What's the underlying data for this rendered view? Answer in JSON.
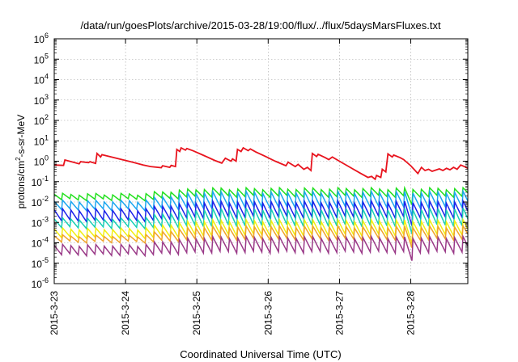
{
  "chart_data": {
    "type": "line",
    "title": "/data/run/goesPlots/archive/2015-03-28/19:00/flux/../flux/5daysMarsFluxes.txt",
    "xlabel": "Coordinated Universal Time (UTC)",
    "ylabel_parts": {
      "prefix": "protons/cm",
      "superscript": "2",
      "suffix": "-s-sr-MeV"
    },
    "y_scale": "log",
    "ylim": [
      1e-06,
      1000000.0
    ],
    "xlim": [
      0,
      5.8
    ],
    "grid": true,
    "x_ticks": [
      {
        "x": 0,
        "label": "2015-3-23"
      },
      {
        "x": 1,
        "label": "2015-3-24"
      },
      {
        "x": 2,
        "label": "2015-3-25"
      },
      {
        "x": 3,
        "label": "2015-3-26"
      },
      {
        "x": 4,
        "label": "2015-3-27"
      },
      {
        "x": 5,
        "label": "2015-3-28"
      }
    ],
    "y_ticks": [
      {
        "exp": -6,
        "base": "10",
        "sup": "-6"
      },
      {
        "exp": -5,
        "base": "10",
        "sup": "-5"
      },
      {
        "exp": -4,
        "base": "10",
        "sup": "-4"
      },
      {
        "exp": -3,
        "base": "10",
        "sup": "-3"
      },
      {
        "exp": -2,
        "base": "10",
        "sup": "-2"
      },
      {
        "exp": -1,
        "base": "10",
        "sup": "-1"
      },
      {
        "exp": 0,
        "base": "10",
        "sup": "0"
      },
      {
        "exp": 1,
        "base": "10",
        "sup": "1"
      },
      {
        "exp": 2,
        "base": "10",
        "sup": "2"
      },
      {
        "exp": 3,
        "base": "10",
        "sup": "3"
      },
      {
        "exp": 4,
        "base": "10",
        "sup": "4"
      },
      {
        "exp": 5,
        "base": "10",
        "sup": "5"
      },
      {
        "exp": 6,
        "base": "10",
        "sup": "6"
      }
    ],
    "series": [
      {
        "color": "#e8141e",
        "points": [
          [
            0.0,
            0.65
          ],
          [
            0.13,
            0.62
          ],
          [
            0.15,
            1.15
          ],
          [
            0.35,
            0.75
          ],
          [
            0.37,
            0.95
          ],
          [
            0.48,
            0.85
          ],
          [
            0.5,
            0.95
          ],
          [
            0.58,
            0.78
          ],
          [
            0.6,
            2.4
          ],
          [
            0.65,
            1.6
          ],
          [
            0.67,
            2.1
          ],
          [
            0.8,
            1.6
          ],
          [
            0.95,
            1.2
          ],
          [
            1.1,
            0.9
          ],
          [
            1.25,
            0.65
          ],
          [
            1.35,
            0.55
          ],
          [
            1.5,
            0.48
          ],
          [
            1.52,
            0.6
          ],
          [
            1.62,
            0.5
          ],
          [
            1.64,
            0.62
          ],
          [
            1.7,
            0.55
          ],
          [
            1.72,
            3.8
          ],
          [
            1.76,
            3.0
          ],
          [
            1.78,
            4.5
          ],
          [
            1.84,
            3.5
          ],
          [
            1.86,
            4.2
          ],
          [
            1.95,
            3.2
          ],
          [
            2.1,
            1.9
          ],
          [
            2.25,
            1.1
          ],
          [
            2.35,
            0.8
          ],
          [
            2.4,
            1.4
          ],
          [
            2.48,
            1.0
          ],
          [
            2.5,
            1.3
          ],
          [
            2.55,
            1.0
          ],
          [
            2.57,
            3.8
          ],
          [
            2.62,
            3.0
          ],
          [
            2.65,
            4.5
          ],
          [
            2.72,
            3.3
          ],
          [
            2.75,
            4.0
          ],
          [
            2.83,
            2.8
          ],
          [
            2.95,
            1.8
          ],
          [
            3.1,
            1.0
          ],
          [
            3.25,
            0.6
          ],
          [
            3.28,
            0.9
          ],
          [
            3.38,
            0.55
          ],
          [
            3.42,
            0.7
          ],
          [
            3.5,
            0.4
          ],
          [
            3.55,
            0.5
          ],
          [
            3.6,
            0.35
          ],
          [
            3.62,
            2.4
          ],
          [
            3.68,
            1.7
          ],
          [
            3.7,
            2.2
          ],
          [
            3.8,
            1.5
          ],
          [
            3.85,
            1.2
          ],
          [
            3.9,
            1.6
          ],
          [
            4.0,
            1.0
          ],
          [
            4.15,
            0.5
          ],
          [
            4.3,
            0.25
          ],
          [
            4.4,
            0.16
          ],
          [
            4.45,
            0.18
          ],
          [
            4.5,
            0.13
          ],
          [
            4.52,
            0.2
          ],
          [
            4.58,
            0.16
          ],
          [
            4.6,
            0.4
          ],
          [
            4.65,
            0.3
          ],
          [
            4.68,
            2.3
          ],
          [
            4.74,
            1.6
          ],
          [
            4.76,
            2.0
          ],
          [
            4.85,
            1.5
          ],
          [
            4.9,
            1.2
          ],
          [
            5.0,
            0.6
          ],
          [
            5.1,
            0.25
          ],
          [
            5.15,
            0.5
          ],
          [
            5.2,
            0.35
          ],
          [
            5.25,
            0.4
          ],
          [
            5.3,
            0.32
          ],
          [
            5.4,
            0.42
          ],
          [
            5.45,
            0.35
          ],
          [
            5.5,
            0.45
          ],
          [
            5.55,
            0.38
          ],
          [
            5.6,
            0.5
          ],
          [
            5.65,
            0.4
          ],
          [
            5.7,
            0.65
          ],
          [
            5.75,
            0.55
          ],
          [
            5.8,
            0.45
          ]
        ]
      },
      {
        "color": "#22e01e",
        "low": 0.013,
        "high": 0.024,
        "low2": 0.019,
        "high2": 0.045,
        "rise": 2.1
      },
      {
        "color": "#1ca6f0",
        "low": 0.0042,
        "high": 0.011,
        "low2": 0.0055,
        "high2": 0.03,
        "rise": 2.1
      },
      {
        "color": "#1c22ea",
        "low": 0.0012,
        "high": 0.0042,
        "low2": 0.0018,
        "high2": 0.01,
        "rise": 2.1
      },
      {
        "color": "#18cfb4",
        "low": 0.00055,
        "high": 0.0015,
        "low2": 0.0007,
        "high2": 0.0045,
        "rise": 2.1
      },
      {
        "color": "#f2ee12",
        "low": 0.00018,
        "high": 0.00048,
        "low2": 0.00024,
        "high2": 0.0012,
        "rise": 2.1
      },
      {
        "color": "#f0a42a",
        "low": 0.00011,
        "high": 0.00022,
        "low2": 0.00015,
        "high2": 0.0006,
        "rise": 2.1
      },
      {
        "color": "#9a3a88",
        "low": 2.6e-05,
        "high": 7.5e-05,
        "low2": 3.5e-05,
        "high2": 0.00018,
        "rise": 2.1
      }
    ],
    "period_days": 0.117,
    "dip": {
      "x": 4.9,
      "factor": 0.35
    }
  }
}
